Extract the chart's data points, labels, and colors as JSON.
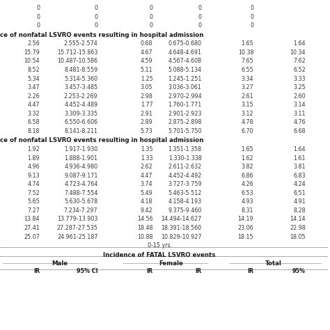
{
  "background_color": "#ffffff",
  "rows_top": [
    [
      "0",
      "0",
      "0",
      "0",
      "0"
    ],
    [
      "0",
      "0",
      "0",
      "0",
      "0"
    ],
    [
      "0",
      "0",
      "0",
      "0",
      "0"
    ]
  ],
  "section1_header": "ce of nonfatal LSVRO events resulting in hospital admission",
  "section1_rows": [
    [
      "2.56",
      "2.555-2.574",
      "0.68",
      "0.675-0.680",
      "1.65",
      "1.64"
    ],
    [
      "15.79",
      "15.712-15.863",
      "4.67",
      "4.648-4.691",
      "10.38",
      "10.34"
    ],
    [
      "10.54",
      "10.487-10.586",
      "4.59",
      "4.567-4.608",
      "7.65",
      "7.62"
    ],
    [
      "8.52",
      "8.481-8.559",
      "5.11",
      "5.088-5.134",
      "6.55",
      "6.52"
    ],
    [
      "5.34",
      "5.314-5.360",
      "1.25",
      "1.245-1.251",
      "3.34",
      "3.33"
    ],
    [
      "3.47",
      "3.457-3.485",
      "3.05",
      "3.036-3.061",
      "3.27",
      "3.25"
    ],
    [
      "2.26",
      "2.253-2.269",
      "2.98",
      "2.970-2.994",
      "2.61",
      "2.60"
    ],
    [
      "4.47",
      "4.452-4.489",
      "1.77",
      "1.760-1.771",
      "3.15",
      "3.14"
    ],
    [
      "3.32",
      "3.309-3.335",
      "2.91",
      "2.901-2.923",
      "3.12",
      "3.11"
    ],
    [
      "6.58",
      "6.550-6.606",
      "2.89",
      "2.875-2.898",
      "4.78",
      "4.76"
    ],
    [
      "8.18",
      "8.141-8.211",
      "5.73",
      "5.701-5.750",
      "6.70",
      "6.68"
    ]
  ],
  "section2_header": "ce of nonfatal LSVRO events resulting in hospital admission",
  "section2_rows": [
    [
      "1.92",
      "1.917-1.930",
      "1.35",
      "1.351-1.358",
      "1.65",
      "1.64"
    ],
    [
      "1.89",
      "1.888-1.901",
      "1.33",
      "1.330-1.338",
      "1.62",
      "1.61"
    ],
    [
      "4.96",
      "4.936-4.980",
      "2.62",
      "2.611-2.632",
      "3.82",
      "3.81"
    ],
    [
      "9.13",
      "9.087-9.171",
      "4.47",
      "4.452-4.492",
      "6.86",
      "6.83"
    ],
    [
      "4.74",
      "4.723-4.764",
      "3.74",
      "3.727-3.759",
      "4.26",
      "4.24"
    ],
    [
      "7.52",
      "7.488-7.554",
      "5.49",
      "5.463-5.512",
      "6.53",
      "6.51"
    ],
    [
      "5.65",
      "5.630-5.678",
      "4.18",
      "4.158-4.193",
      "4.93",
      "4.91"
    ],
    [
      "7.27",
      "7.234-7.297",
      "9.42",
      "9.375-9.460",
      "8.31",
      "8.28"
    ],
    [
      "13.84",
      "13.779-13.903",
      "14.56",
      "14.494-14.627",
      "14.19",
      "14.14"
    ],
    [
      "27.41",
      "27.287-27.535",
      "18.48",
      "18.391-18.560",
      "23.06",
      "22.98"
    ],
    [
      "25.07",
      "24.961-25.187",
      "10.88",
      "10.829-10.927",
      "18.15",
      "18.05"
    ]
  ],
  "age_label": "0-15 yrs",
  "section3_header": "Incidence of FATAL LSVRO events",
  "col_groups": [
    "Male",
    "Female",
    "Total"
  ],
  "col_sub_labels": [
    "IR",
    "95% CI",
    "IR",
    "IR",
    "IR",
    "95%"
  ],
  "text_color": "#3a3a3a",
  "header_color": "#1a1a1a",
  "line_color": "#999999",
  "font_size_data": 5.8,
  "font_size_header": 6.2,
  "font_size_section": 6.0
}
